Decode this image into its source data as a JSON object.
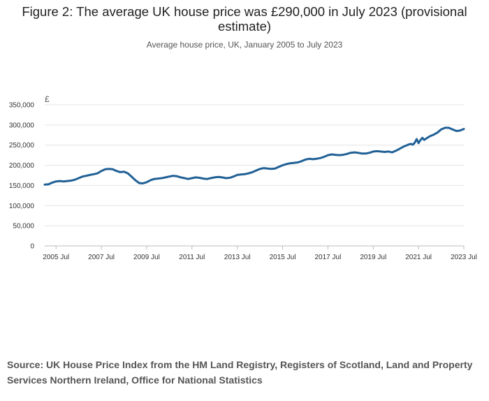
{
  "chart_data": {
    "type": "line",
    "title": "Figure 2: The average UK house price was £290,000 in July 2023 (provisional estimate)",
    "subtitle": "Average house price, UK, January 2005 to July 2023",
    "ylabel": "£",
    "xlabel": "",
    "ylim": [
      0,
      350000
    ],
    "y_ticks": [
      0,
      50000,
      100000,
      150000,
      200000,
      250000,
      300000,
      350000
    ],
    "y_tick_labels": [
      "0",
      "50,000",
      "100,000",
      "150,000",
      "200,000",
      "250,000",
      "300,000",
      "350,000"
    ],
    "x_ticks": [
      "2005 Jul",
      "2007 Jul",
      "2009 Jul",
      "2011 Jul",
      "2013 Jul",
      "2015 Jul",
      "2017 Jul",
      "2019 Jul",
      "2021 Jul",
      "2023 Jul"
    ],
    "x_tick_decimal": [
      2005.5,
      2007.5,
      2009.5,
      2011.5,
      2013.5,
      2015.5,
      2017.5,
      2019.5,
      2021.5,
      2023.5
    ],
    "xlim": [
      2005.0,
      2023.5
    ],
    "gridlines": true,
    "series": [
      {
        "name": "Average house price",
        "color": "#206095",
        "points": [
          [
            2005.0,
            152000
          ],
          [
            2005.17,
            153000
          ],
          [
            2005.33,
            157000
          ],
          [
            2005.5,
            160000
          ],
          [
            2005.67,
            161000
          ],
          [
            2005.83,
            160000
          ],
          [
            2006.0,
            161000
          ],
          [
            2006.17,
            162000
          ],
          [
            2006.33,
            164000
          ],
          [
            2006.5,
            168000
          ],
          [
            2006.67,
            172000
          ],
          [
            2006.83,
            174000
          ],
          [
            2007.0,
            176000
          ],
          [
            2007.17,
            178000
          ],
          [
            2007.33,
            180000
          ],
          [
            2007.5,
            186000
          ],
          [
            2007.67,
            190000
          ],
          [
            2007.83,
            191000
          ],
          [
            2008.0,
            190000
          ],
          [
            2008.17,
            186000
          ],
          [
            2008.33,
            183000
          ],
          [
            2008.5,
            184000
          ],
          [
            2008.67,
            180000
          ],
          [
            2008.83,
            172000
          ],
          [
            2009.0,
            163000
          ],
          [
            2009.17,
            156000
          ],
          [
            2009.33,
            155000
          ],
          [
            2009.5,
            158000
          ],
          [
            2009.67,
            163000
          ],
          [
            2009.83,
            166000
          ],
          [
            2010.0,
            167000
          ],
          [
            2010.17,
            168000
          ],
          [
            2010.33,
            170000
          ],
          [
            2010.5,
            172000
          ],
          [
            2010.67,
            174000
          ],
          [
            2010.83,
            173000
          ],
          [
            2011.0,
            170000
          ],
          [
            2011.17,
            168000
          ],
          [
            2011.33,
            166000
          ],
          [
            2011.5,
            168000
          ],
          [
            2011.67,
            170000
          ],
          [
            2011.83,
            169000
          ],
          [
            2012.0,
            167000
          ],
          [
            2012.17,
            166000
          ],
          [
            2012.33,
            168000
          ],
          [
            2012.5,
            170000
          ],
          [
            2012.67,
            171000
          ],
          [
            2012.83,
            170000
          ],
          [
            2013.0,
            168000
          ],
          [
            2013.17,
            169000
          ],
          [
            2013.33,
            172000
          ],
          [
            2013.5,
            176000
          ],
          [
            2013.67,
            177000
          ],
          [
            2013.83,
            178000
          ],
          [
            2014.0,
            180000
          ],
          [
            2014.17,
            183000
          ],
          [
            2014.33,
            187000
          ],
          [
            2014.5,
            191000
          ],
          [
            2014.67,
            193000
          ],
          [
            2014.83,
            192000
          ],
          [
            2015.0,
            191000
          ],
          [
            2015.17,
            192000
          ],
          [
            2015.33,
            196000
          ],
          [
            2015.5,
            200000
          ],
          [
            2015.67,
            203000
          ],
          [
            2015.83,
            205000
          ],
          [
            2016.0,
            206000
          ],
          [
            2016.17,
            207000
          ],
          [
            2016.33,
            210000
          ],
          [
            2016.5,
            214000
          ],
          [
            2016.67,
            216000
          ],
          [
            2016.83,
            215000
          ],
          [
            2017.0,
            216000
          ],
          [
            2017.17,
            218000
          ],
          [
            2017.33,
            221000
          ],
          [
            2017.5,
            225000
          ],
          [
            2017.67,
            227000
          ],
          [
            2017.83,
            226000
          ],
          [
            2018.0,
            225000
          ],
          [
            2018.17,
            226000
          ],
          [
            2018.33,
            228000
          ],
          [
            2018.5,
            231000
          ],
          [
            2018.67,
            232000
          ],
          [
            2018.83,
            231000
          ],
          [
            2019.0,
            229000
          ],
          [
            2019.17,
            229000
          ],
          [
            2019.33,
            231000
          ],
          [
            2019.5,
            234000
          ],
          [
            2019.67,
            235000
          ],
          [
            2019.83,
            234000
          ],
          [
            2020.0,
            233000
          ],
          [
            2020.17,
            234000
          ],
          [
            2020.33,
            232000
          ],
          [
            2020.5,
            236000
          ],
          [
            2020.67,
            241000
          ],
          [
            2020.83,
            246000
          ],
          [
            2021.0,
            250000
          ],
          [
            2021.08,
            252000
          ],
          [
            2021.17,
            253000
          ],
          [
            2021.25,
            251000
          ],
          [
            2021.33,
            256000
          ],
          [
            2021.42,
            265000
          ],
          [
            2021.5,
            255000
          ],
          [
            2021.58,
            262000
          ],
          [
            2021.67,
            268000
          ],
          [
            2021.75,
            263000
          ],
          [
            2021.83,
            266000
          ],
          [
            2022.0,
            272000
          ],
          [
            2022.17,
            276000
          ],
          [
            2022.33,
            281000
          ],
          [
            2022.5,
            289000
          ],
          [
            2022.67,
            293000
          ],
          [
            2022.83,
            293000
          ],
          [
            2023.0,
            289000
          ],
          [
            2023.17,
            285000
          ],
          [
            2023.33,
            286000
          ],
          [
            2023.5,
            290000
          ]
        ]
      }
    ]
  },
  "source": "Source: UK House Price Index from the HM Land Registry, Registers of Scotland, Land and Property Services Northern Ireland, Office for National Statistics"
}
